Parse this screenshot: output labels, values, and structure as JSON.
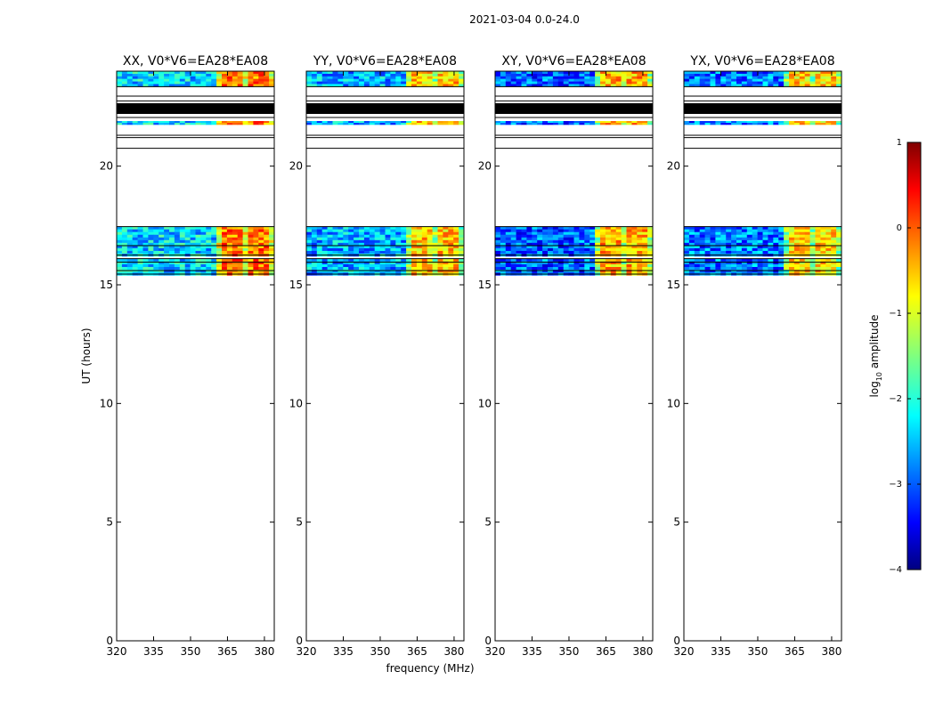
{
  "chart_data": {
    "type": "heatmap",
    "suptitle": "2021-03-04 0.0-24.0",
    "xlabel": "frequency (MHz)",
    "ylabel": "UT (hours)",
    "xlim": [
      320,
      384
    ],
    "ylim": [
      0,
      24
    ],
    "xticks": [
      320,
      335,
      350,
      365,
      380
    ],
    "yticks": [
      0,
      5,
      10,
      15,
      20
    ],
    "colorbar": {
      "label": "log",
      "label_sub": "10",
      "label_suffix": " amplitude",
      "range": [
        -4,
        1
      ],
      "ticks": [
        1,
        0,
        -1,
        -2,
        -3,
        -4
      ],
      "tick_labels": [
        "1",
        "0",
        "−1",
        "−2",
        "−3",
        "−4"
      ]
    },
    "panels": [
      {
        "title": "XX, V0*V6=EA28*EA08",
        "channel_level": [
          -2.3,
          -0.2
        ],
        "split_mhz": 361
      },
      {
        "title": "YY, V0*V6=EA28*EA08",
        "channel_level": [
          -2.5,
          -0.6
        ],
        "split_mhz": 361
      },
      {
        "title": "XY, V0*V6=EA28*EA08",
        "channel_level": [
          -2.9,
          -0.5
        ],
        "split_mhz": 361
      },
      {
        "title": "YX, V0*V6=EA28*EA08",
        "channel_level": [
          -2.8,
          -0.7
        ],
        "split_mhz": 361
      }
    ],
    "data_blocks_ut": [
      {
        "start": 23.35,
        "end": 24.0
      },
      {
        "start": 21.75,
        "end": 21.9
      },
      {
        "start": 16.2,
        "end": 17.45
      },
      {
        "start": 15.4,
        "end": 16.1
      }
    ],
    "flag_bands_ut": [
      {
        "start": 22.2,
        "end": 22.65
      }
    ],
    "flag_lines_ut": [
      23.35,
      22.95,
      22.75,
      22.05,
      21.3,
      21.2,
      20.75,
      17.45,
      16.65,
      16.25,
      16.1,
      15.95,
      15.6,
      15.45
    ]
  }
}
